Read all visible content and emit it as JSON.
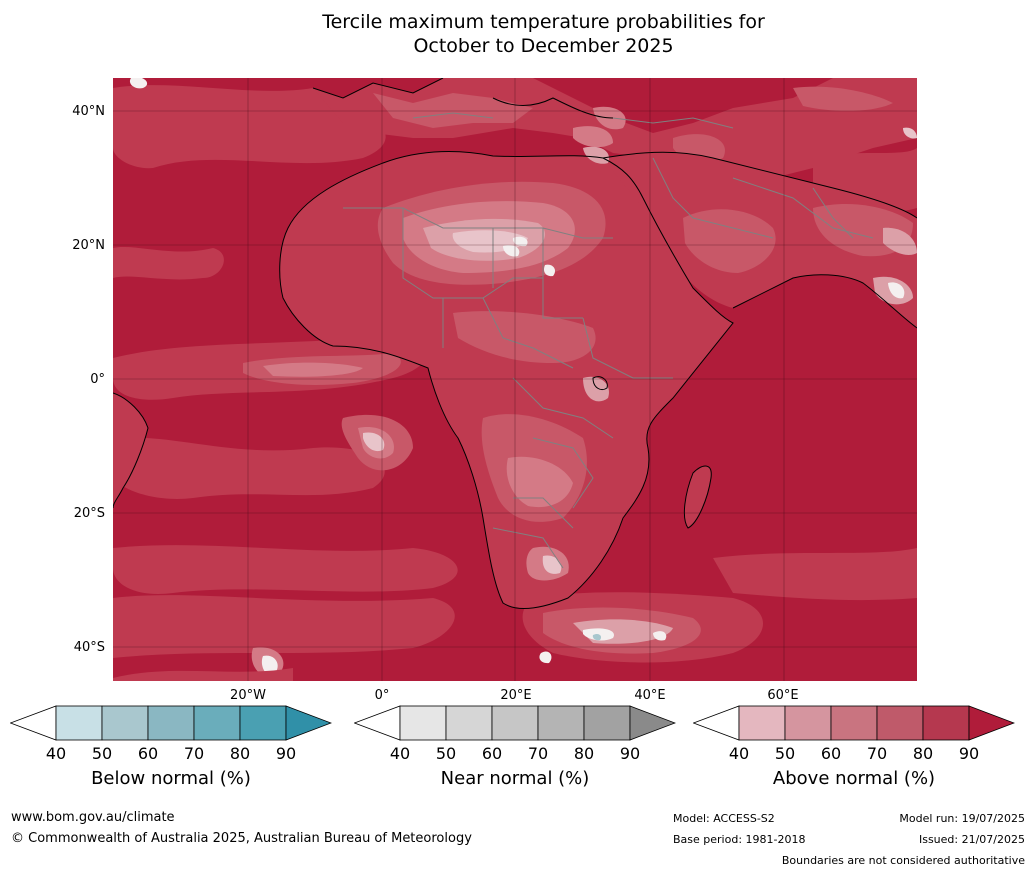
{
  "title_line1": "Tercile maximum temperature probabilities for",
  "title_line2": "October to December 2025",
  "lat_labels": [
    "40°N",
    "20°N",
    "0°",
    "20°S",
    "40°S"
  ],
  "lon_labels": [
    "20°W",
    "0°",
    "20°E",
    "40°E",
    "60°E"
  ],
  "colorbars": [
    {
      "label": "Below normal (%)",
      "ticks": [
        "40",
        "50",
        "60",
        "70",
        "80",
        "90"
      ],
      "colors": [
        "#c8e0e6",
        "#a9c7ce",
        "#8ab7c2",
        "#6aadbb",
        "#4aa0b2"
      ],
      "over_color": "#3090a8"
    },
    {
      "label": "Near normal (%)",
      "ticks": [
        "40",
        "50",
        "60",
        "70",
        "80",
        "90"
      ],
      "colors": [
        "#e6e6e6",
        "#d6d6d6",
        "#c6c6c6",
        "#b4b4b4",
        "#a2a2a2"
      ],
      "over_color": "#8a8a8a"
    },
    {
      "label": "Above normal (%)",
      "ticks": [
        "40",
        "50",
        "60",
        "70",
        "80",
        "90"
      ],
      "colors": [
        "#e4b7bf",
        "#d5959f",
        "#c97480",
        "#bf5a6a",
        "#b5384f"
      ],
      "over_color": "#b01c3a"
    }
  ],
  "footer": {
    "url": "www.bom.gov.au/climate",
    "copyright": "© Commonwealth of Australia 2025, Australian Bureau of Meteorology",
    "model": "Model: ACCESS-S2",
    "base_period": "Base period: 1981-2018",
    "model_run": "Model run: 19/07/2025",
    "issued": "Issued: 21/07/2025",
    "boundaries_note": "Boundaries are not considered authoritative"
  },
  "map_colors": {
    "ocean_high": "#b01c3a",
    "level80": "#bf3a50",
    "level70": "#c85868",
    "level60": "#d47a86",
    "level50": "#dca0a8",
    "level40": "#e8c4ca",
    "white": "#f4f0f0",
    "blue_patch": "#a9c7ce",
    "coast": "#000000",
    "border": "#808080",
    "grid": "#3a0a14"
  }
}
